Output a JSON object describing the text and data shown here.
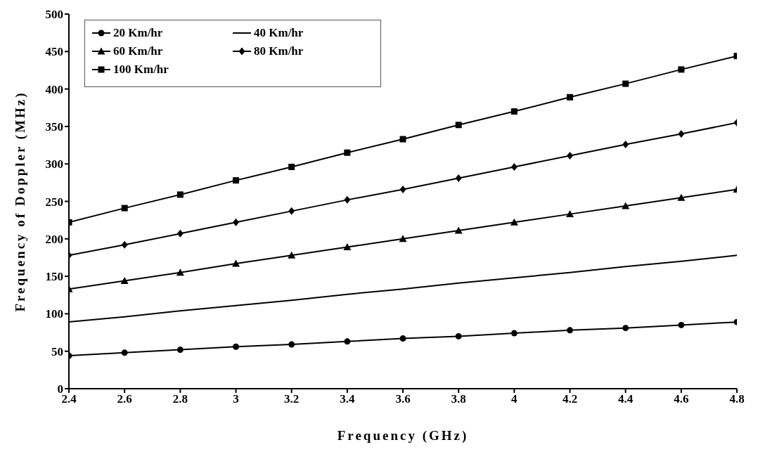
{
  "chart_data": {
    "type": "line",
    "xlabel": "Frequency (GHz)",
    "ylabel": "Frequency of Doppler (MHz)",
    "x": [
      2.4,
      2.6,
      2.8,
      3,
      3.2,
      3.4,
      3.6,
      3.8,
      4,
      4.2,
      4.4,
      4.6,
      4.8
    ],
    "series": [
      {
        "name": "20 Km/hr",
        "color": "#000000",
        "marker": "circle",
        "values": [
          44,
          48,
          52,
          56,
          59,
          63,
          67,
          70,
          74,
          78,
          81,
          85,
          89
        ]
      },
      {
        "name": "40 Km/hr",
        "color": "#000000",
        "marker": "none",
        "values": [
          89,
          96,
          104,
          111,
          118,
          126,
          133,
          141,
          148,
          155,
          163,
          170,
          178
        ]
      },
      {
        "name": "60 Km/hr",
        "color": "#000000",
        "marker": "triangle",
        "values": [
          133,
          144,
          155,
          167,
          178,
          189,
          200,
          211,
          222,
          233,
          244,
          255,
          266
        ]
      },
      {
        "name": "80 Km/hr",
        "color": "#000000",
        "marker": "diamond",
        "values": [
          178,
          192,
          207,
          222,
          237,
          252,
          266,
          281,
          296,
          311,
          326,
          340,
          355
        ]
      },
      {
        "name": "100 Km/hr",
        "color": "#000000",
        "marker": "square",
        "values": [
          222,
          241,
          259,
          278,
          296,
          315,
          333,
          352,
          370,
          389,
          407,
          426,
          444
        ]
      }
    ],
    "xlim": [
      2.4,
      4.8
    ],
    "xticks": [
      2.4,
      2.6,
      2.8,
      3,
      3.2,
      3.4,
      3.6,
      3.8,
      4,
      4.2,
      4.4,
      4.6,
      4.8
    ],
    "ylim": [
      0,
      500
    ],
    "yticks": [
      0,
      50,
      100,
      150,
      200,
      250,
      300,
      350,
      400,
      450,
      500
    ],
    "grid": false,
    "legend": "top left"
  }
}
